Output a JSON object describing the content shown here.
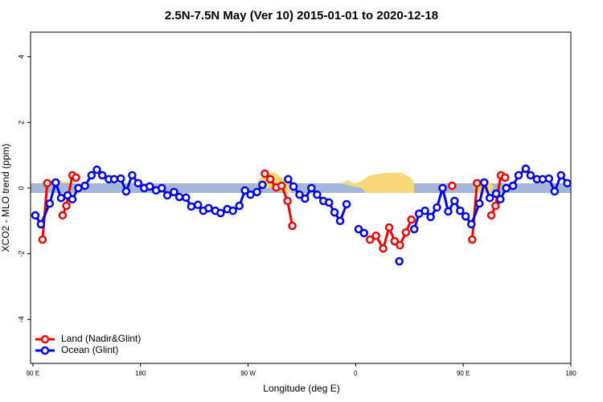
{
  "chart_data": {
    "type": "line",
    "title": "2.5N-7.5N May (Ver 10)   2015-01-01 to 2020-12-18",
    "x_label": "Longitude (deg E)",
    "y_label": "XCO2 - MLO trend (ppm)",
    "xlim": [
      88,
      540
    ],
    "ylim": [
      -5.34,
      4.75
    ],
    "xticks": [
      {
        "value": 90,
        "label": "90 E"
      },
      180,
      {
        "value": 270,
        "label": "90 W"
      },
      {
        "value": 360,
        "label": "0"
      },
      {
        "value": 450,
        "label": "90 E"
      },
      {
        "value": 540,
        "label": "180"
      }
    ],
    "yticks": [
      -4,
      -2,
      0,
      2,
      4
    ],
    "legend": "bottom-left",
    "series": [
      {
        "name": "Land (Nadir&Glint)",
        "color": "#ee0000",
        "x": [
          98,
          102,
          null,
          114.8,
          118,
          123,
          126,
          null,
          284,
          288.5,
          293.5,
          298,
          303,
          307,
          null,
          372,
          377,
          383,
          388,
          392.6,
          397,
          402,
          406.6,
          null,
          440.7,
          null,
          457.5,
          461.5,
          null,
          473.5,
          477,
          481.5,
          485
        ],
        "values": [
          -1.57,
          0.15,
          null,
          -0.83,
          -0.54,
          0.39,
          0.32,
          null,
          0.44,
          0.27,
          0.02,
          0.07,
          -0.39,
          -1.15,
          null,
          -1.57,
          -1.45,
          -1.84,
          -1.2,
          -1.62,
          -1.74,
          -1.35,
          -0.96,
          null,
          0.07,
          null,
          -1.57,
          0.15,
          null,
          -0.83,
          -0.54,
          0.39,
          0.32
        ]
      },
      {
        "name": "Ocean (Glint)",
        "color": "#0000ee",
        "x": [
          92,
          96.7,
          104,
          109,
          113.5,
          119,
          123,
          128,
          133.5,
          139,
          143.5,
          148,
          153.5,
          158,
          163.5,
          168,
          173,
          178,
          183,
          187.7,
          193,
          197.8,
          202.4,
          208,
          212.5,
          218,
          222.5,
          228,
          232.5,
          237,
          242.6,
          247,
          252.6,
          257.3,
          262.7,
          267.4,
          272,
          277.4,
          282,
          null,
          303.5,
          308,
          313,
          317.6,
          323,
          327.7,
          333,
          337.7,
          342.3,
          347,
          352.4,
          null,
          362.4,
          367,
          null,
          396.5,
          null,
          409,
          413,
          418,
          422.7,
          428,
          432.7,
          437.4,
          442.7,
          447.4,
          452,
          456.8,
          463.5,
          467.5,
          472.2,
          477.5,
          481,
          486,
          491.6,
          496.3,
          502.3,
          506.3,
          511.7,
          516.4,
          521.7,
          526.4,
          531.8,
          537
        ],
        "values": [
          -0.83,
          -1.1,
          -0.47,
          0.17,
          -0.3,
          -0.22,
          -0.34,
          0,
          0.07,
          0.39,
          0.56,
          0.39,
          0.27,
          0.27,
          0.29,
          -0.1,
          0.39,
          0.15,
          0,
          0.05,
          -0.07,
          0,
          -0.22,
          -0.12,
          -0.27,
          -0.29,
          -0.56,
          -0.51,
          -0.69,
          -0.61,
          -0.69,
          -0.76,
          -0.64,
          -0.69,
          -0.54,
          -0.07,
          -0.2,
          -0.12,
          0.1,
          null,
          0.27,
          0.05,
          -0.2,
          -0.32,
          0,
          -0.2,
          -0.39,
          -0.44,
          -0.74,
          -1.0,
          -0.49,
          null,
          -1.25,
          -1.37,
          null,
          -2.23,
          null,
          -1.25,
          -0.78,
          -0.69,
          -0.88,
          -0.59,
          0,
          -0.71,
          -0.39,
          -0.69,
          -0.86,
          -1.1,
          -0.47,
          0.17,
          -0.3,
          -0.17,
          -0.34,
          0,
          0.07,
          0.39,
          0.59,
          0.39,
          0.27,
          0.27,
          0.29,
          -0.1,
          0.39,
          0.15
        ]
      }
    ]
  }
}
